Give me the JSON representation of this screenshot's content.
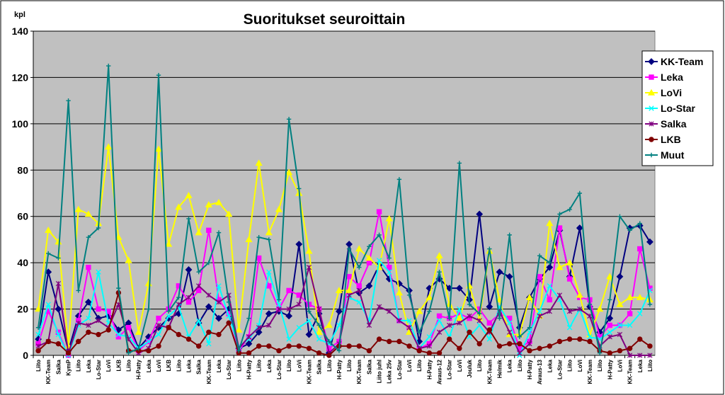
{
  "chart_data": {
    "type": "line",
    "title": "Suoritukset seuroittain",
    "ylabel": "kpl",
    "xlabel": "",
    "ylim": [
      0,
      140
    ],
    "yticks": [
      0,
      20,
      40,
      60,
      80,
      100,
      120,
      140
    ],
    "grid": true,
    "legend_position": "right",
    "plot_background": "#c0c0c0",
    "categories": [
      "Liito",
      "KK-Team",
      "Salka",
      "KymP",
      "Liito",
      "Leka",
      "Lo-Star",
      "LoVi",
      "LKB",
      "Liito",
      "H-Patty",
      "Leka",
      "LoVi",
      "LKB",
      "Liito",
      "Leka",
      "Salka",
      "KK-Team",
      "Leka",
      "Lo-Star",
      "Liito",
      "H-Patty",
      "Liito",
      "Leka",
      "Lo-Star",
      "Liito",
      "LoVi",
      "KK-Team",
      "Salka",
      "Liito",
      "H-Patty",
      "Liito",
      "KK-Team",
      "Salka",
      "Liito juhl",
      "Leka 25v",
      "Lo-Star",
      "LoVi",
      "Liito",
      "H-Patty",
      "Avaus-12",
      "Lo-Star",
      "LoVi",
      "Jouluk",
      "Liito",
      "KK-Team",
      "Helmik",
      "Leka",
      "Liito",
      "H-Patty",
      "Avaus-13",
      "Leka",
      "Lo-Star",
      "Liito",
      "LoVi",
      "KK-Team",
      "Liito",
      "H-Patty",
      "LoVi",
      "KK-Team",
      "Leka",
      "Liito"
    ],
    "series": [
      {
        "name": "KK-Team",
        "color": "#000080",
        "marker": "diamond",
        "values": [
          7,
          36,
          20,
          2,
          17,
          23,
          16,
          17,
          11,
          14,
          3,
          8,
          12,
          16,
          18,
          37,
          14,
          21,
          16,
          20,
          3,
          5,
          10,
          18,
          19,
          17,
          48,
          9,
          18,
          1,
          19,
          48,
          27,
          30,
          39,
          33,
          31,
          28,
          6,
          29,
          33,
          29,
          29,
          24,
          61,
          21,
          36,
          34,
          12,
          25,
          33,
          38,
          54,
          34,
          55,
          21,
          10,
          16,
          34,
          55,
          56,
          49
        ]
      },
      {
        "name": "Leka",
        "color": "#ff00ff",
        "marker": "square",
        "values": [
          5,
          19,
          10,
          0,
          15,
          38,
          20,
          19,
          8,
          12,
          2,
          6,
          16,
          20,
          30,
          23,
          28,
          54,
          24,
          18,
          2,
          8,
          42,
          30,
          20,
          28,
          26,
          22,
          20,
          3,
          6,
          34,
          30,
          40,
          62,
          38,
          15,
          12,
          3,
          5,
          17,
          16,
          18,
          16,
          20,
          14,
          18,
          16,
          3,
          6,
          34,
          24,
          55,
          33,
          25,
          24,
          8,
          13,
          13,
          18,
          46,
          29
        ]
      },
      {
        "name": "LoVi",
        "color": "#ffff00",
        "marker": "triangle",
        "values": [
          20,
          54,
          49,
          4,
          63,
          61,
          57,
          90,
          51,
          41,
          10,
          31,
          89,
          48,
          64,
          69,
          53,
          65,
          66,
          61,
          11,
          50,
          83,
          53,
          63,
          79,
          70,
          45,
          10,
          13,
          28,
          28,
          46,
          42,
          38,
          59,
          27,
          10,
          19,
          25,
          43,
          22,
          16,
          30,
          16,
          45,
          24,
          9,
          9,
          25,
          17,
          57,
          38,
          40,
          26,
          9,
          20,
          34,
          22,
          25,
          25,
          24
        ]
      },
      {
        "name": "Lo-Star",
        "color": "#00ffff",
        "marker": "x",
        "values": [
          9,
          22,
          9,
          0,
          13,
          16,
          36,
          14,
          9,
          8,
          3,
          6,
          9,
          17,
          21,
          8,
          15,
          5,
          30,
          17,
          4,
          7,
          13,
          36,
          22,
          7,
          12,
          15,
          7,
          5,
          13,
          25,
          23,
          15,
          41,
          36,
          15,
          15,
          3,
          8,
          15,
          8,
          20,
          8,
          13,
          7,
          21,
          14,
          0,
          10,
          19,
          30,
          24,
          12,
          20,
          8,
          7,
          10,
          13,
          13,
          18,
          28
        ]
      },
      {
        "name": "Salka",
        "color": "#800080",
        "marker": "star",
        "values": [
          4,
          6,
          31,
          1,
          14,
          13,
          15,
          12,
          22,
          7,
          1,
          3,
          13,
          12,
          22,
          25,
          30,
          26,
          23,
          26,
          3,
          8,
          12,
          13,
          20,
          20,
          22,
          38,
          20,
          1,
          5,
          26,
          28,
          13,
          21,
          19,
          15,
          12,
          3,
          4,
          10,
          13,
          14,
          17,
          15,
          10,
          19,
          10,
          1,
          5,
          17,
          19,
          26,
          19,
          20,
          17,
          4,
          8,
          9,
          0,
          0,
          0
        ]
      },
      {
        "name": "LKB",
        "color": "#800000",
        "marker": "circle",
        "values": [
          2,
          6,
          5,
          1,
          6,
          10,
          9,
          11,
          27,
          2,
          2,
          2,
          4,
          12,
          9,
          7,
          4,
          10,
          9,
          14,
          1,
          1,
          4,
          4,
          2,
          4,
          4,
          3,
          1,
          0,
          4,
          4,
          4,
          2,
          7,
          6,
          6,
          4,
          2,
          1,
          1,
          7,
          3,
          10,
          5,
          11,
          4,
          5,
          5,
          2,
          3,
          4,
          6,
          7,
          7,
          6,
          2,
          1,
          2,
          3,
          7,
          4
        ]
      },
      {
        "name": "Muut",
        "color": "#008080",
        "marker": "plus",
        "values": [
          12,
          44,
          42,
          110,
          28,
          51,
          55,
          125,
          29,
          1,
          3,
          20,
          121,
          19,
          25,
          59,
          36,
          40,
          53,
          23,
          2,
          16,
          51,
          50,
          24,
          102,
          72,
          19,
          13,
          6,
          2,
          46,
          38,
          47,
          52,
          42,
          76,
          26,
          10,
          19,
          36,
          16,
          83,
          22,
          18,
          46,
          16,
          52,
          8,
          12,
          43,
          40,
          61,
          63,
          70,
          22,
          1,
          24,
          60,
          54,
          57,
          22
        ]
      }
    ]
  }
}
